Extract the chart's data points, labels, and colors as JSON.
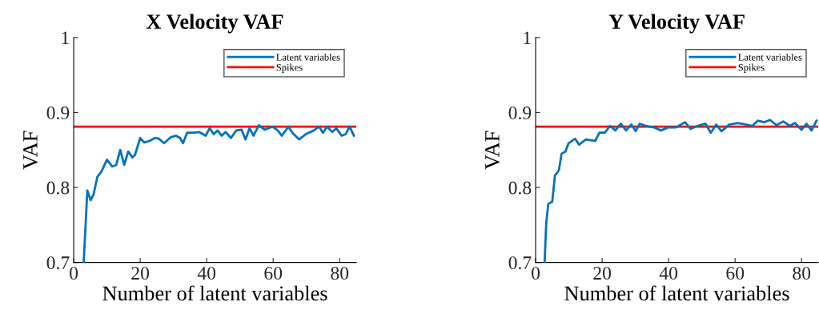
{
  "chart_data": [
    {
      "type": "line",
      "title": "X Velocity VAF",
      "xlabel": "Number of latent variables",
      "ylabel": "VAF",
      "xlim": [
        0,
        85
      ],
      "ylim": [
        0.7,
        1
      ],
      "xticks": [
        0,
        20,
        40,
        60,
        80
      ],
      "yticks": [
        0.7,
        0.8,
        0.9,
        1
      ],
      "grid": false,
      "legend": "top right",
      "series": [
        {
          "name": "Latent variables",
          "color": "#0072bd",
          "x": [
            3,
            4.1,
            5.1,
            6,
            7.1,
            8.3,
            10,
            11.6,
            12.8,
            14,
            15.2,
            16.4,
            17.6,
            18.4,
            20,
            21.2,
            22.8,
            24.4,
            25.6,
            27.2,
            29.2,
            30.8,
            32,
            32.9,
            34.1,
            36.1,
            37.7,
            39.7,
            40.9,
            42.1,
            43.3,
            44.5,
            45.7,
            47.3,
            48.9,
            50.5,
            51.7,
            52.9,
            54.1,
            55.7,
            57.4,
            59.8,
            61.4,
            62.6,
            64.6,
            65.8,
            67.8,
            69.8,
            72.2,
            73.8,
            75,
            76.2,
            77.8,
            79,
            80.6,
            81.8,
            83,
            84.3
          ],
          "values": [
            0.7,
            0.796,
            0.783,
            0.791,
            0.814,
            0.821,
            0.837,
            0.828,
            0.83,
            0.85,
            0.83,
            0.848,
            0.84,
            0.843,
            0.866,
            0.86,
            0.862,
            0.866,
            0.865,
            0.859,
            0.867,
            0.869,
            0.866,
            0.859,
            0.873,
            0.873,
            0.874,
            0.869,
            0.879,
            0.871,
            0.876,
            0.869,
            0.874,
            0.866,
            0.876,
            0.877,
            0.864,
            0.879,
            0.869,
            0.883,
            0.877,
            0.881,
            0.876,
            0.869,
            0.881,
            0.873,
            0.864,
            0.871,
            0.876,
            0.881,
            0.873,
            0.881,
            0.874,
            0.879,
            0.869,
            0.871,
            0.881,
            0.869
          ]
        }
      ],
      "ref_lines": [
        {
          "axis": "y",
          "value": 0.881,
          "label": "Spikes",
          "color": "#ff0000"
        }
      ]
    },
    {
      "type": "line",
      "title": "Y Velocity VAF",
      "xlabel": "Number of latent variables",
      "ylabel": "VAF",
      "xlim": [
        0,
        85
      ],
      "ylim": [
        0.7,
        1
      ],
      "xticks": [
        0,
        20,
        40,
        60,
        80
      ],
      "yticks": [
        0.7,
        0.8,
        0.9,
        1
      ],
      "grid": false,
      "legend": "top right",
      "series": [
        {
          "name": "Latent variables",
          "color": "#0072bd",
          "x": [
            2.7,
            3.2,
            3.8,
            5,
            5.8,
            7,
            7.8,
            9,
            9.9,
            11.9,
            13.1,
            15.1,
            17.9,
            19.2,
            20.8,
            22.4,
            24,
            25.6,
            27.2,
            28.8,
            30.1,
            31.3,
            33.3,
            35.7,
            37.7,
            39.8,
            42.2,
            45,
            46.6,
            48.6,
            51.1,
            52.7,
            54.3,
            55.9,
            58.3,
            60.8,
            63.2,
            65.2,
            66.8,
            68.8,
            70.5,
            72.5,
            74.5,
            76.5,
            78,
            80,
            81.5,
            83,
            84.5
          ],
          "values": [
            0.7,
            0.753,
            0.778,
            0.781,
            0.816,
            0.823,
            0.845,
            0.848,
            0.859,
            0.865,
            0.857,
            0.864,
            0.862,
            0.873,
            0.873,
            0.882,
            0.876,
            0.885,
            0.876,
            0.884,
            0.875,
            0.885,
            0.882,
            0.88,
            0.876,
            0.88,
            0.88,
            0.887,
            0.878,
            0.882,
            0.885,
            0.873,
            0.884,
            0.875,
            0.884,
            0.886,
            0.884,
            0.882,
            0.889,
            0.887,
            0.89,
            0.883,
            0.888,
            0.882,
            0.886,
            0.877,
            0.885,
            0.876,
            0.889
          ]
        }
      ],
      "ref_lines": [
        {
          "axis": "y",
          "value": 0.881,
          "label": "Spikes",
          "color": "#ff0000"
        }
      ]
    }
  ]
}
